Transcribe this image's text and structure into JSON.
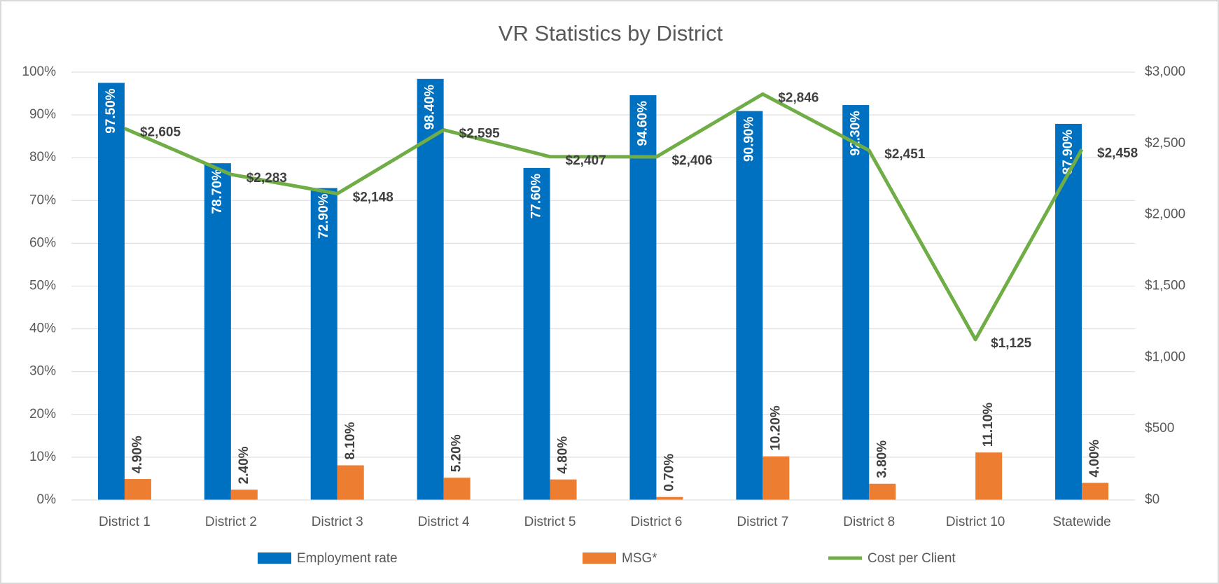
{
  "chart_data": {
    "type": "bar_line",
    "title": "VR Statistics by District",
    "categories": [
      "District 1",
      "District 2",
      "District 3",
      "District 4",
      "District 5",
      "District 6",
      "District 7",
      "District 8",
      "District 10",
      "Statewide"
    ],
    "series": [
      {
        "name": "Employment rate",
        "type": "bar",
        "color": "#0070c0",
        "values": [
          97.5,
          78.7,
          72.9,
          98.4,
          77.6,
          94.6,
          90.9,
          92.3,
          null,
          87.9
        ],
        "value_labels": [
          "97.50%",
          "78.70%",
          "72.90%",
          "98.40%",
          "77.60%",
          "94.60%",
          "90.90%",
          "92.30%",
          null,
          "87.90%"
        ]
      },
      {
        "name": "MSG*",
        "type": "bar",
        "color": "#ed7d31",
        "values": [
          4.9,
          2.4,
          8.1,
          5.2,
          4.8,
          0.7,
          10.2,
          3.8,
          11.1,
          4.0
        ],
        "value_labels": [
          "4.90%",
          "2.40%",
          "8.10%",
          "5.20%",
          "4.80%",
          "0.70%",
          "10.20%",
          "3.80%",
          "11.10%",
          "4.00%"
        ]
      },
      {
        "name": "Cost per Client",
        "type": "line",
        "axis": "y2",
        "color": "#70ad47",
        "values": [
          2605,
          2283,
          2148,
          2595,
          2407,
          2406,
          2846,
          2451,
          1125,
          2458
        ],
        "value_labels": [
          "$2,605",
          "$2,283",
          "$2,148",
          "$2,595",
          "$2,407",
          "$2,406",
          "$2,846",
          "$2,451",
          "$1,125",
          "$2,458"
        ]
      }
    ],
    "ylim": [
      0,
      100
    ],
    "yticks": [
      {
        "value": 0,
        "label": "0%"
      },
      {
        "value": 10,
        "label": "10%"
      },
      {
        "value": 20,
        "label": "20%"
      },
      {
        "value": 30,
        "label": "30%"
      },
      {
        "value": 40,
        "label": "40%"
      },
      {
        "value": 50,
        "label": "50%"
      },
      {
        "value": 60,
        "label": "60%"
      },
      {
        "value": 70,
        "label": "70%"
      },
      {
        "value": 80,
        "label": "80%"
      },
      {
        "value": 90,
        "label": "90%"
      },
      {
        "value": 100,
        "label": "100%"
      }
    ],
    "y2lim": [
      0,
      3000
    ],
    "y2ticks": [
      {
        "value": 0,
        "label": "$0"
      },
      {
        "value": 500,
        "label": "$500"
      },
      {
        "value": 1000,
        "label": "$1,000"
      },
      {
        "value": 1500,
        "label": "$1,500"
      },
      {
        "value": 2000,
        "label": "$2,000"
      },
      {
        "value": 2500,
        "label": "$2,500"
      },
      {
        "value": 3000,
        "label": "$3,000"
      }
    ],
    "grid": true,
    "legend": "bottom"
  }
}
